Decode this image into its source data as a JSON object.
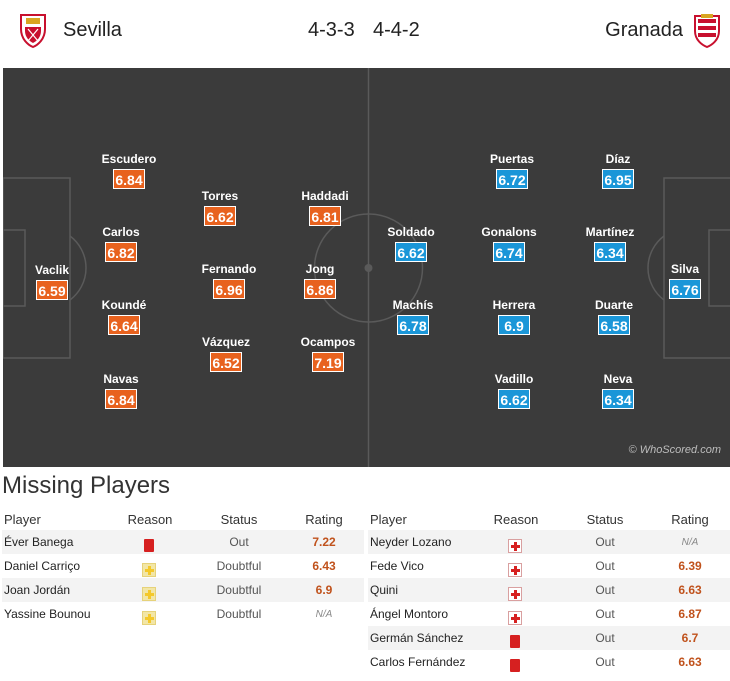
{
  "header": {
    "home_team": "Sevilla",
    "away_team": "Granada",
    "home_formation": "4-3-3",
    "away_formation": "4-4-2",
    "home_color": "#e8621e",
    "away_color": "#1a96d8"
  },
  "pitch": {
    "credit": "© WhoScored.com",
    "home_players": [
      {
        "name": "Vaclik",
        "rating": "6.59"
      },
      {
        "name": "Escudero",
        "rating": "6.84"
      },
      {
        "name": "Carlos",
        "rating": "6.82"
      },
      {
        "name": "Koundé",
        "rating": "6.64"
      },
      {
        "name": "Navas",
        "rating": "6.84"
      },
      {
        "name": "Torres",
        "rating": "6.62"
      },
      {
        "name": "Fernando",
        "rating": "6.96"
      },
      {
        "name": "Vázquez",
        "rating": "6.52"
      },
      {
        "name": "Haddadi",
        "rating": "6.81"
      },
      {
        "name": "Jong",
        "rating": "6.86"
      },
      {
        "name": "Ocampos",
        "rating": "7.19"
      }
    ],
    "away_players": [
      {
        "name": "Soldado",
        "rating": "6.62"
      },
      {
        "name": "Machís",
        "rating": "6.78"
      },
      {
        "name": "Puertas",
        "rating": "6.72"
      },
      {
        "name": "Gonalons",
        "rating": "6.74"
      },
      {
        "name": "Herrera",
        "rating": "6.9"
      },
      {
        "name": "Vadillo",
        "rating": "6.62"
      },
      {
        "name": "Díaz",
        "rating": "6.95"
      },
      {
        "name": "Martínez",
        "rating": "6.34"
      },
      {
        "name": "Duarte",
        "rating": "6.58"
      },
      {
        "name": "Neva",
        "rating": "6.34"
      },
      {
        "name": "Silva",
        "rating": "6.76"
      }
    ]
  },
  "missing": {
    "title": "Missing Players",
    "columns": {
      "player": "Player",
      "reason": "Reason",
      "status": "Status",
      "rating": "Rating"
    },
    "home": [
      {
        "player": "Éver Banega",
        "reason_icon": "red-card-icon",
        "status": "Out",
        "rating": "7.22"
      },
      {
        "player": "Daniel Carriço",
        "reason_icon": "doubtful-icon",
        "status": "Doubtful",
        "rating": "6.43"
      },
      {
        "player": "Joan Jordán",
        "reason_icon": "doubtful-icon",
        "status": "Doubtful",
        "rating": "6.9"
      },
      {
        "player": "Yassine Bounou",
        "reason_icon": "doubtful-icon",
        "status": "Doubtful",
        "rating": "N/A"
      }
    ],
    "away": [
      {
        "player": "Neyder Lozano",
        "reason_icon": "injury-icon",
        "status": "Out",
        "rating": "N/A"
      },
      {
        "player": "Fede Vico",
        "reason_icon": "injury-icon",
        "status": "Out",
        "rating": "6.39"
      },
      {
        "player": "Quini",
        "reason_icon": "injury-icon",
        "status": "Out",
        "rating": "6.63"
      },
      {
        "player": "Ángel Montoro",
        "reason_icon": "injury-icon",
        "status": "Out",
        "rating": "6.87"
      },
      {
        "player": "Germán Sánchez",
        "reason_icon": "red-card-icon",
        "status": "Out",
        "rating": "6.7"
      },
      {
        "player": "Carlos Fernández",
        "reason_icon": "red-card-icon",
        "status": "Out",
        "rating": "6.63"
      }
    ]
  }
}
